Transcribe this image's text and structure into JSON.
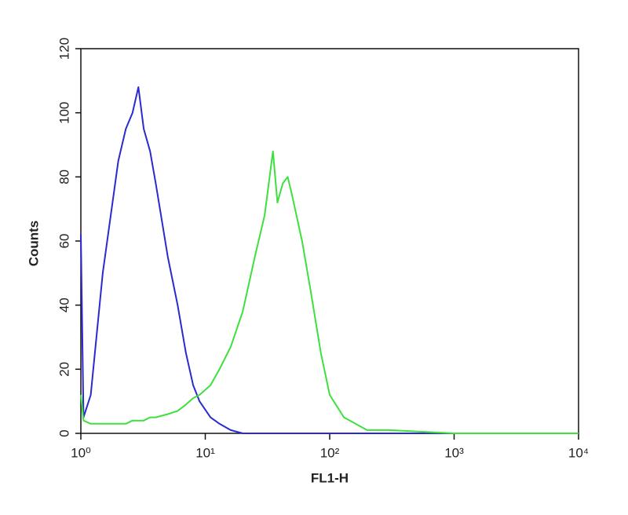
{
  "chart_data": {
    "type": "line",
    "xlabel": "FL1-H",
    "ylabel": "Counts",
    "xscale": "log",
    "xlim": [
      1,
      10000
    ],
    "ylim": [
      0,
      120
    ],
    "xticks": [
      {
        "value": 1,
        "label": "10⁰"
      },
      {
        "value": 10,
        "label": "10¹"
      },
      {
        "value": 100,
        "label": "10²"
      },
      {
        "value": 1000,
        "label": "10³"
      },
      {
        "value": 10000,
        "label": "10⁴"
      }
    ],
    "yticks": [
      0,
      20,
      40,
      60,
      80,
      100,
      120
    ],
    "x": [
      1,
      1.05,
      1.2,
      1.5,
      2,
      2.3,
      2.6,
      2.9,
      3.2,
      3.6,
      4,
      5,
      6,
      7,
      8,
      9,
      11,
      13,
      16,
      20,
      25,
      30,
      35,
      38,
      42,
      46,
      50,
      60,
      70,
      85,
      100,
      130,
      200,
      300,
      1000,
      10000
    ],
    "series": [
      {
        "color": "#2a2ad0",
        "values": [
          62,
          5,
          12,
          50,
          85,
          95,
          100,
          108,
          95,
          88,
          78,
          55,
          40,
          25,
          15,
          10,
          5,
          3,
          1,
          0,
          0,
          0,
          0,
          0,
          0,
          0,
          0,
          0,
          0,
          0,
          0,
          0,
          0,
          0,
          0,
          0
        ]
      },
      {
        "color": "#3ee03e",
        "values": [
          12,
          4,
          3,
          3,
          3,
          3,
          4,
          4,
          4,
          5,
          5,
          6,
          7,
          9,
          11,
          12,
          15,
          20,
          27,
          38,
          55,
          68,
          88,
          72,
          78,
          80,
          74,
          60,
          45,
          25,
          12,
          5,
          1,
          1,
          0,
          0
        ]
      }
    ]
  }
}
